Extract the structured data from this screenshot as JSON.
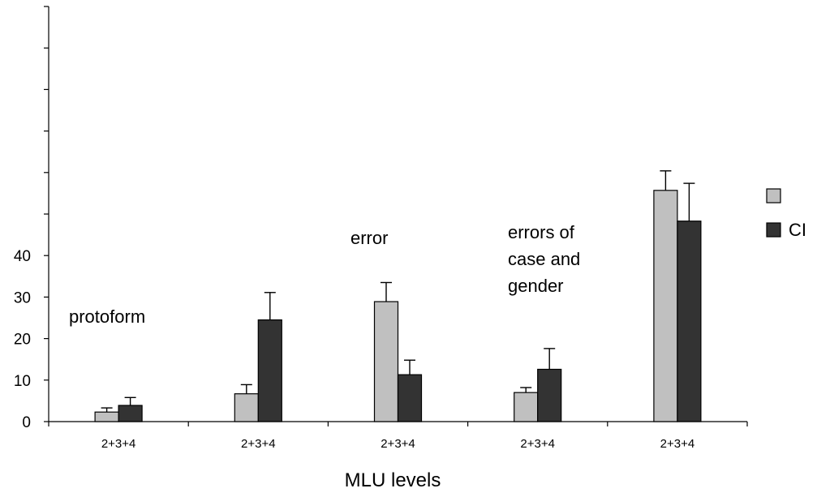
{
  "chart_data": {
    "type": "bar",
    "xlabel": "MLU levels",
    "ylabel": "",
    "ylim": [
      0,
      100
    ],
    "yticks_labeled": [
      0,
      10,
      20,
      30,
      40
    ],
    "yticks_unlabeled": [
      50,
      60,
      70,
      80,
      90,
      100
    ],
    "grid": false,
    "legend_position": "right",
    "categories": [
      "2+3+4",
      "2+3+4",
      "2+3+4",
      "2+3+4",
      "2+3+4"
    ],
    "series": [
      {
        "name": "",
        "color": "#c0c0c0",
        "values": [
          2.3,
          6.7,
          28.9,
          7.0,
          55.7
        ],
        "error_upper": [
          3.3,
          8.9,
          33.5,
          8.2,
          60.4
        ]
      },
      {
        "name": "CI",
        "color": "#333333",
        "values": [
          3.9,
          24.5,
          11.3,
          12.6,
          48.3
        ],
        "error_upper": [
          5.8,
          31.1,
          14.8,
          17.6,
          57.4
        ]
      }
    ],
    "annotations": [
      {
        "text": "protoform"
      },
      {
        "text": "error"
      },
      {
        "text": "errors of\ncase and\ngender"
      }
    ]
  }
}
